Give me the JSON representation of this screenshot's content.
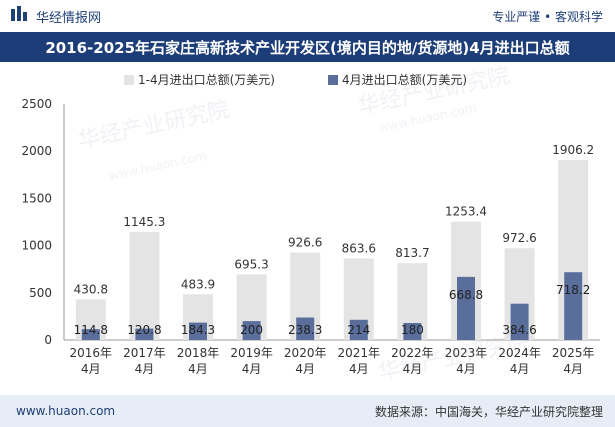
{
  "header": {
    "brand": "华经情报网",
    "tagline": "专业严谨 • 客观科学",
    "logo_icon": "bar-logo-icon"
  },
  "footer": {
    "website": "www.huaon.com",
    "source": "数据来源：中国海关，华经产业研究院整理"
  },
  "watermark": {
    "text": "华经产业研究院",
    "url": "www.huaon.com"
  },
  "colors": {
    "title_band": "#1d3d78",
    "cumulative_bar": "#e4e4e4",
    "monthly_bar": "#5a6e9c",
    "footer_band": "#e6edf6"
  },
  "chart_data": {
    "type": "bar",
    "title": "2016-2025年石家庄高新技术产业开发区(境内目的地/货源地)4月进出口总额",
    "categories": [
      "2016年\n4月",
      "2017年\n4月",
      "2018年\n4月",
      "2019年\n4月",
      "2020年\n4月",
      "2021年\n4月",
      "2022年\n4月",
      "2023年\n4月",
      "2024年\n4月",
      "2025年\n4月"
    ],
    "series": [
      {
        "name": "1-4月进出口总额(万美元)",
        "values": [
          430.8,
          1145.3,
          483.9,
          695.3,
          926.6,
          863.6,
          813.7,
          1253.4,
          972.6,
          1906.2
        ],
        "color": "#e4e4e4"
      },
      {
        "name": "4月进出口总额(万美元)",
        "values": [
          114.8,
          120.8,
          184.3,
          200,
          238.3,
          214,
          180,
          668.8,
          384.6,
          718.2
        ],
        "color": "#5a6e9c"
      }
    ],
    "ylim": [
      0,
      2500
    ],
    "yticks": [
      0,
      500,
      1000,
      1500,
      2000,
      2500
    ],
    "legend_position": "top-center",
    "grid": false,
    "overlapped_bars": true
  }
}
